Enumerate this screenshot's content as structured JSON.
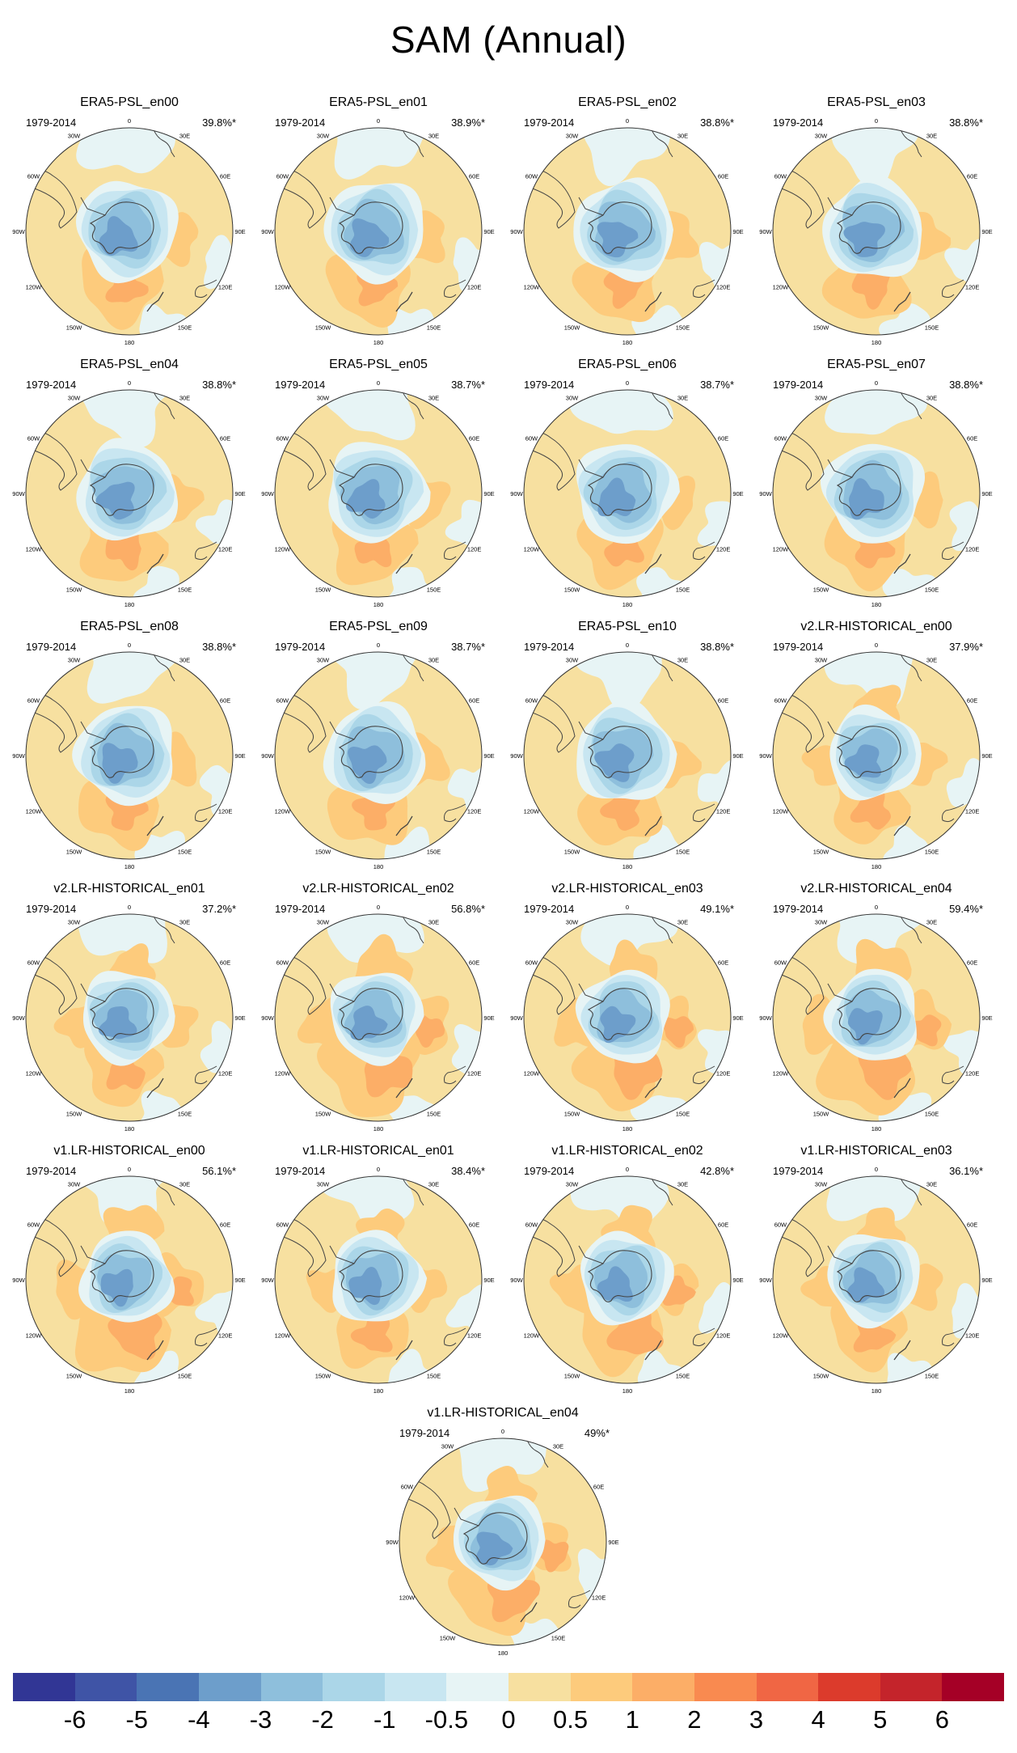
{
  "title": "SAM (Annual)",
  "period": "1979-2014",
  "lon_labels": [
    "0",
    "30E",
    "60E",
    "90E",
    "120E",
    "150E",
    "180",
    "150W",
    "120W",
    "90W",
    "60W",
    "30W"
  ],
  "panels": [
    {
      "name": "ERA5-PSL_en00",
      "pct": "39.8%*",
      "pattern": "era5"
    },
    {
      "name": "ERA5-PSL_en01",
      "pct": "38.9%*",
      "pattern": "era5"
    },
    {
      "name": "ERA5-PSL_en02",
      "pct": "38.8%*",
      "pattern": "era5"
    },
    {
      "name": "ERA5-PSL_en03",
      "pct": "38.8%*",
      "pattern": "era5"
    },
    {
      "name": "ERA5-PSL_en04",
      "pct": "38.8%*",
      "pattern": "era5"
    },
    {
      "name": "ERA5-PSL_en05",
      "pct": "38.7%*",
      "pattern": "era5"
    },
    {
      "name": "ERA5-PSL_en06",
      "pct": "38.7%*",
      "pattern": "era5"
    },
    {
      "name": "ERA5-PSL_en07",
      "pct": "38.8%*",
      "pattern": "era5"
    },
    {
      "name": "ERA5-PSL_en08",
      "pct": "38.8%*",
      "pattern": "era5"
    },
    {
      "name": "ERA5-PSL_en09",
      "pct": "38.7%*",
      "pattern": "era5"
    },
    {
      "name": "ERA5-PSL_en10",
      "pct": "38.8%*",
      "pattern": "era5"
    },
    {
      "name": "v2.LR-HISTORICAL_en00",
      "pct": "37.9%*",
      "pattern": "weak"
    },
    {
      "name": "v2.LR-HISTORICAL_en01",
      "pct": "37.2%*",
      "pattern": "weak"
    },
    {
      "name": "v2.LR-HISTORICAL_en02",
      "pct": "56.8%*",
      "pattern": "strong"
    },
    {
      "name": "v2.LR-HISTORICAL_en03",
      "pct": "49.1%*",
      "pattern": "mid"
    },
    {
      "name": "v2.LR-HISTORICAL_en04",
      "pct": "59.4%*",
      "pattern": "strong"
    },
    {
      "name": "v1.LR-HISTORICAL_en00",
      "pct": "56.1%*",
      "pattern": "strong"
    },
    {
      "name": "v1.LR-HISTORICAL_en01",
      "pct": "38.4%*",
      "pattern": "weak"
    },
    {
      "name": "v1.LR-HISTORICAL_en02",
      "pct": "42.8%*",
      "pattern": "mid"
    },
    {
      "name": "v1.LR-HISTORICAL_en03",
      "pct": "36.1%*",
      "pattern": "weak"
    },
    {
      "name": "v1.LR-HISTORICAL_en04",
      "pct": "49%*",
      "pattern": "mid"
    }
  ],
  "colorbar": {
    "labels": [
      "-6",
      "-5",
      "-4",
      "-3",
      "-2",
      "-1",
      "-0.5",
      "0",
      "0.5",
      "1",
      "2",
      "3",
      "4",
      "5",
      "6"
    ],
    "colors": [
      "#313695",
      "#3f54a6",
      "#4a74b4",
      "#6d9ecb",
      "#8ebfdc",
      "#abd6e8",
      "#c8e6f1",
      "#e7f4f5",
      "#f7e0a0",
      "#fdcb7c",
      "#fcae67",
      "#f98a50",
      "#f06644",
      "#dc3b2c",
      "#c4242b",
      "#a50026"
    ]
  }
}
